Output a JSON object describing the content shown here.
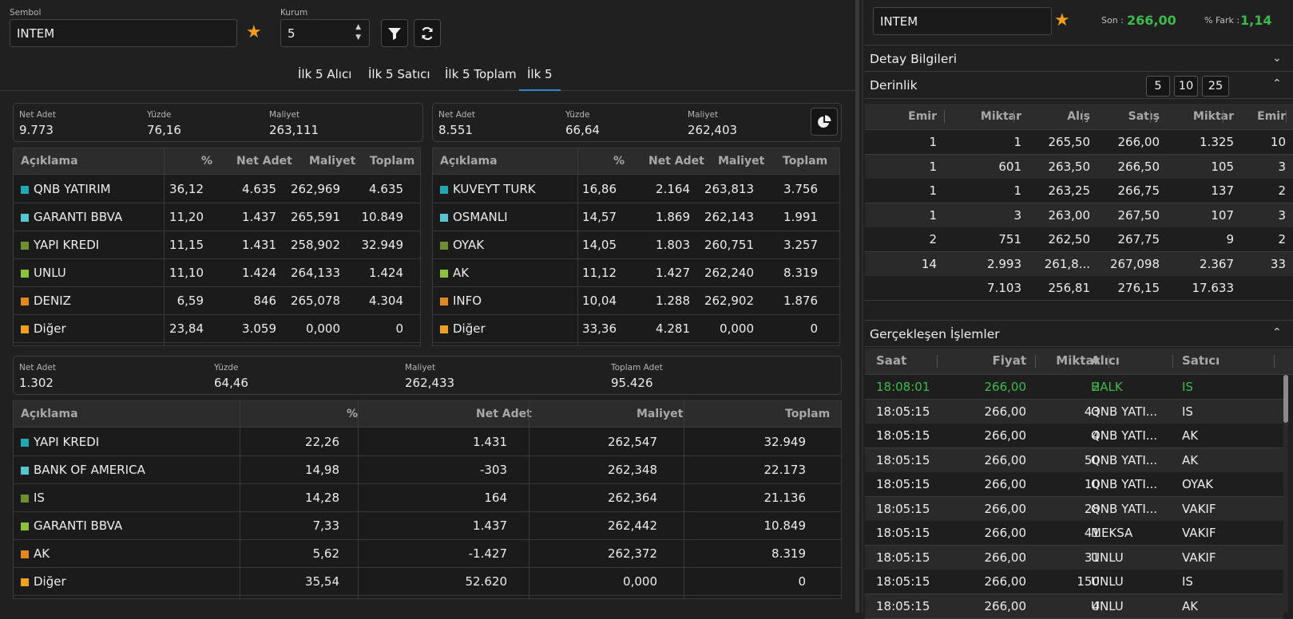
{
  "search": {
    "symbol_label": "Sembol",
    "symbol_value": "INTEM",
    "kurum_label": "Kurum",
    "kurum_value": "5"
  },
  "tabs": [
    "İlk 5 Alıcı",
    "İlk 5 Satıcı",
    "İlk 5 Toplam",
    "İlk 5"
  ],
  "active_tab": "İlk 5",
  "buyers": {
    "summary": {
      "net_adet_label": "Net Adet",
      "net_adet": "9.773",
      "yuzde_label": "Yüzde",
      "yuzde": "76,16",
      "maliyet_label": "Maliyet",
      "maliyet": "263,111"
    },
    "headers": [
      "Açıklama",
      "%",
      "Net Adet",
      "Maliyet",
      "Toplam"
    ],
    "rows": [
      {
        "name": "QNB YATIRIM",
        "pct": "36,12",
        "net": "4.635",
        "cost": "262,969",
        "total": "4.635",
        "color": "#22a7b5"
      },
      {
        "name": "GARANTI BBVA",
        "pct": "11,20",
        "net": "1.437",
        "cost": "265,591",
        "total": "10.849",
        "color": "#58c4cf"
      },
      {
        "name": "YAPI KREDI",
        "pct": "11,15",
        "net": "1.431",
        "cost": "258,902",
        "total": "32.949",
        "color": "#6d8f2e"
      },
      {
        "name": "UNLU",
        "pct": "11,10",
        "net": "1.424",
        "cost": "264,133",
        "total": "1.424",
        "color": "#8bc43a"
      },
      {
        "name": "DENIZ",
        "pct": "6,59",
        "net": "846",
        "cost": "265,078",
        "total": "4.304",
        "color": "#e08a1e"
      },
      {
        "name": "Diğer",
        "pct": "23,84",
        "net": "3.059",
        "cost": "0,000",
        "total": "0",
        "color": "#f0a020"
      }
    ]
  },
  "sellers": {
    "summary": {
      "net_adet_label": "Net Adet",
      "net_adet": "8.551",
      "yuzde_label": "Yüzde",
      "yuzde": "66,64",
      "maliyet_label": "Maliyet",
      "maliyet": "262,403"
    },
    "headers": [
      "Açıklama",
      "%",
      "Net Adet",
      "Maliyet",
      "Toplam"
    ],
    "rows": [
      {
        "name": "KUVEYT TURK",
        "pct": "16,86",
        "net": "2.164",
        "cost": "263,813",
        "total": "3.756",
        "color": "#22a7b5"
      },
      {
        "name": "OSMANLI",
        "pct": "14,57",
        "net": "1.869",
        "cost": "262,143",
        "total": "1.991",
        "color": "#58c4cf"
      },
      {
        "name": "OYAK",
        "pct": "14,05",
        "net": "1.803",
        "cost": "260,751",
        "total": "3.257",
        "color": "#6d8f2e"
      },
      {
        "name": "AK",
        "pct": "11,12",
        "net": "1.427",
        "cost": "262,240",
        "total": "8.319",
        "color": "#8bc43a"
      },
      {
        "name": "INFO",
        "pct": "10,04",
        "net": "1.288",
        "cost": "262,902",
        "total": "1.876",
        "color": "#e08a1e"
      },
      {
        "name": "Diğer",
        "pct": "33,36",
        "net": "4.281",
        "cost": "0,000",
        "total": "0",
        "color": "#f0a020"
      }
    ]
  },
  "totals": {
    "summary": {
      "net_adet_label": "Net Adet",
      "net_adet": "1.302",
      "yuzde_label": "Yüzde",
      "yuzde": "64,46",
      "maliyet_label": "Maliyet",
      "maliyet": "262,433",
      "toplam_label": "Toplam Adet",
      "toplam": "95.426"
    },
    "headers": [
      "Açıklama",
      "%",
      "Net Adet",
      "Maliyet",
      "Toplam"
    ],
    "rows": [
      {
        "name": "YAPI KREDI",
        "pct": "22,26",
        "net": "1.431",
        "cost": "262,547",
        "total": "32.949",
        "color": "#22a7b5"
      },
      {
        "name": "BANK OF AMERICA",
        "pct": "14,98",
        "net": "-303",
        "cost": "262,348",
        "total": "22.173",
        "color": "#58c4cf"
      },
      {
        "name": "IS",
        "pct": "14,28",
        "net": "164",
        "cost": "262,364",
        "total": "21.136",
        "color": "#6d8f2e"
      },
      {
        "name": "GARANTI BBVA",
        "pct": "7,33",
        "net": "1.437",
        "cost": "262,442",
        "total": "10.849",
        "color": "#8bc43a"
      },
      {
        "name": "AK",
        "pct": "5,62",
        "net": "-1.427",
        "cost": "262,372",
        "total": "8.319",
        "color": "#e08a1e"
      },
      {
        "name": "Diğer",
        "pct": "35,54",
        "net": "52.620",
        "cost": "0,000",
        "total": "0",
        "color": "#f0a020"
      }
    ]
  },
  "right": {
    "symbol_value": "INTEM",
    "son_label": "Son :",
    "son_value": "266,00",
    "fark_label": "% Fark :",
    "fark_value": "1,14",
    "green": "#3dbb4a",
    "detay_title": "Detay Bilgileri",
    "derinlik_title": "Derinlik",
    "depth_buttons": [
      "5",
      "10",
      "25"
    ],
    "depth_headers": [
      "Emir",
      "Miktar",
      "Alış",
      "Satış",
      "Miktar",
      "Emir"
    ],
    "depth_rows": [
      [
        "1",
        "1",
        "265,50",
        "266,00",
        "1.325",
        "10"
      ],
      [
        "1",
        "601",
        "263,50",
        "266,50",
        "105",
        "3"
      ],
      [
        "1",
        "1",
        "263,25",
        "266,75",
        "137",
        "2"
      ],
      [
        "1",
        "3",
        "263,00",
        "267,50",
        "107",
        "3"
      ],
      [
        "2",
        "751",
        "262,50",
        "267,75",
        "9",
        "2"
      ],
      [
        "14",
        "2.993",
        "261,8...",
        "267,098",
        "2.367",
        "33"
      ],
      [
        "",
        "7.103",
        "256,81",
        "276,15",
        "17.633",
        ""
      ]
    ],
    "trades_title": "Gerçekleşen İşlemler",
    "trade_headers": [
      "Saat",
      "Fiyat",
      "Miktar",
      "Alıcı",
      "Satıcı"
    ],
    "trades": [
      [
        "18:08:01",
        "266,00",
        "2",
        "HALK",
        "IS"
      ],
      [
        "18:05:15",
        "266,00",
        "43",
        "QNB YATI...",
        "IS"
      ],
      [
        "18:05:15",
        "266,00",
        "4",
        "QNB YATI...",
        "AK"
      ],
      [
        "18:05:15",
        "266,00",
        "50",
        "QNB YATI...",
        "AK"
      ],
      [
        "18:05:15",
        "266,00",
        "10",
        "QNB YATI...",
        "OYAK"
      ],
      [
        "18:05:15",
        "266,00",
        "28",
        "QNB YATI...",
        "VAKIF"
      ],
      [
        "18:05:15",
        "266,00",
        "41",
        "MEKSA",
        "VAKIF"
      ],
      [
        "18:05:15",
        "266,00",
        "31",
        "UNLU",
        "VAKIF"
      ],
      [
        "18:05:15",
        "266,00",
        "150",
        "UNLU",
        "IS"
      ],
      [
        "18:05:15",
        "266,00",
        "4",
        "UNLU",
        "AK"
      ]
    ]
  }
}
